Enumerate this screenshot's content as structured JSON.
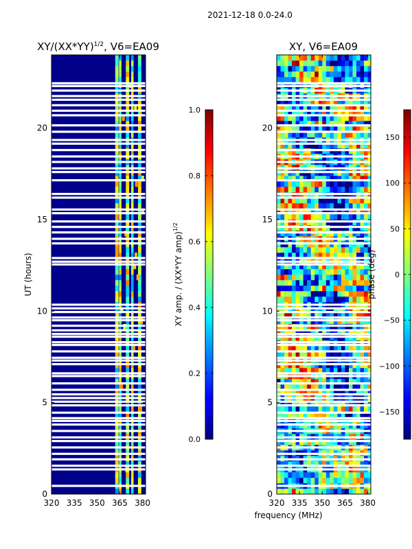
{
  "figure_title": "2021-12-18 0.0-24.0",
  "chart_data": [
    {
      "type": "heatmap",
      "title_main": "XY/(XX*YY)",
      "title_sup": "1/2",
      "title_tail": ", V6=EA09",
      "xlabel": "",
      "ylabel": "UT (hours)",
      "xlim": [
        320,
        382
      ],
      "ylim": [
        0,
        24
      ],
      "xticks": [
        "320",
        "335",
        "350",
        "365",
        "380"
      ],
      "xtick_values": [
        320,
        335,
        350,
        365,
        380
      ],
      "yticks": [
        "0",
        "5",
        "10",
        "15",
        "20"
      ],
      "ytick_values": [
        0,
        5,
        10,
        15,
        20
      ],
      "colorbar": {
        "label_main": "XY amp. / (XX*YY amp)",
        "label_sup": "1/2",
        "range": [
          0.0,
          1.0
        ],
        "ticks": [
          "0.0",
          "0.2",
          "0.4",
          "0.6",
          "0.8",
          "1.0"
        ],
        "tick_values": [
          0.0,
          0.2,
          0.4,
          0.6,
          0.8,
          1.0
        ],
        "colormap": "jet"
      },
      "description": "Mostly near 0 below ~363 MHz; elevated (0.3-0.7) in bands ~363-380 MHz; horizontal blank (flagged) rows"
    },
    {
      "type": "heatmap",
      "title": "XY, V6=EA09",
      "xlabel": "frequency (MHz)",
      "ylabel": "",
      "xlim": [
        320,
        382
      ],
      "ylim": [
        0,
        24
      ],
      "xticks": [
        "320",
        "335",
        "350",
        "365",
        "380"
      ],
      "xtick_values": [
        320,
        335,
        350,
        365,
        380
      ],
      "yticks": [
        "0",
        "5",
        "10",
        "15",
        "20"
      ],
      "ytick_values": [
        0,
        5,
        10,
        15,
        20
      ],
      "colorbar": {
        "label": "phase (deg)",
        "range": [
          -180,
          180
        ],
        "ticks": [
          "−150",
          "−100",
          "−50",
          "0",
          "50",
          "100",
          "150"
        ],
        "tick_values": [
          -150,
          -100,
          -50,
          0,
          50,
          100,
          150
        ],
        "colormap": "jet"
      },
      "description": "Noisy phase spanning full range with time-varying structure; same flagged rows"
    }
  ],
  "flagged_rows_hours": [
    0.45,
    1.35,
    1.55,
    1.9,
    2.2,
    2.55,
    2.9,
    3.1,
    3.45,
    3.8,
    4.0,
    4.15,
    4.45,
    4.85,
    5.05,
    5.25,
    5.45,
    5.7,
    6.05,
    6.45,
    6.6,
    7.1,
    7.3,
    7.45,
    7.8,
    8.15,
    8.3,
    8.6,
    8.75,
    8.95,
    9.2,
    9.5,
    9.65,
    9.95,
    10.15,
    10.35,
    12.55,
    12.7,
    12.9,
    13.7,
    13.95,
    14.3,
    14.6,
    14.9,
    15.35,
    15.55,
    16.2,
    16.4,
    17.15,
    17.6,
    17.8,
    18.15,
    18.45,
    18.8,
    19.15,
    19.35,
    19.8,
    20.15,
    20.7,
    20.95,
    21.25,
    21.55,
    21.75,
    22.05,
    22.3,
    22.45
  ]
}
